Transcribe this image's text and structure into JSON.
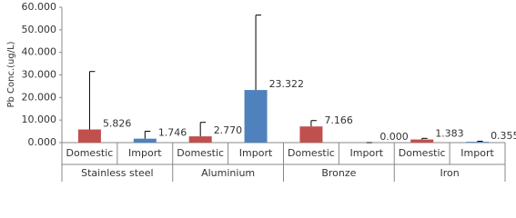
{
  "chart_data": {
    "type": "bar",
    "y_label": "Pb Conc.(ug/L)",
    "groups": [
      "Stainless steel",
      "Aluminium",
      "Bronze",
      "Iron"
    ],
    "categories": [
      "Domestic",
      "Import",
      "Domestic",
      "Import",
      "Domestic",
      "Import",
      "Domestic",
      "Import"
    ],
    "values": [
      5.826,
      1.746,
      2.77,
      23.322,
      7.166,
      0,
      1.383,
      0.355
    ],
    "value_labels": [
      "5.826",
      "1.746",
      "2.770",
      "23.322",
      "7.166",
      "0.000",
      "1.383",
      "0.355"
    ],
    "errors": [
      25.7,
      3.3,
      6.2,
      33.2,
      2.6,
      0,
      0.5,
      0.25
    ],
    "colors": [
      "#c0504d",
      "#4f81bd",
      "#c0504d",
      "#4f81bd",
      "#c0504d",
      "#4f81bd",
      "#c0504d",
      "#4f81bd"
    ],
    "ylim": [
      0,
      60
    ],
    "yticks": [
      {
        "value": 0,
        "label": "0.000"
      },
      {
        "value": 10,
        "label": "10.000"
      },
      {
        "value": 20,
        "label": "20.000"
      },
      {
        "value": 30,
        "label": "30.000"
      },
      {
        "value": 40,
        "label": "40.000"
      },
      {
        "value": 50,
        "label": "50.000"
      },
      {
        "value": 60,
        "label": "60.000"
      }
    ],
    "grid": false
  }
}
